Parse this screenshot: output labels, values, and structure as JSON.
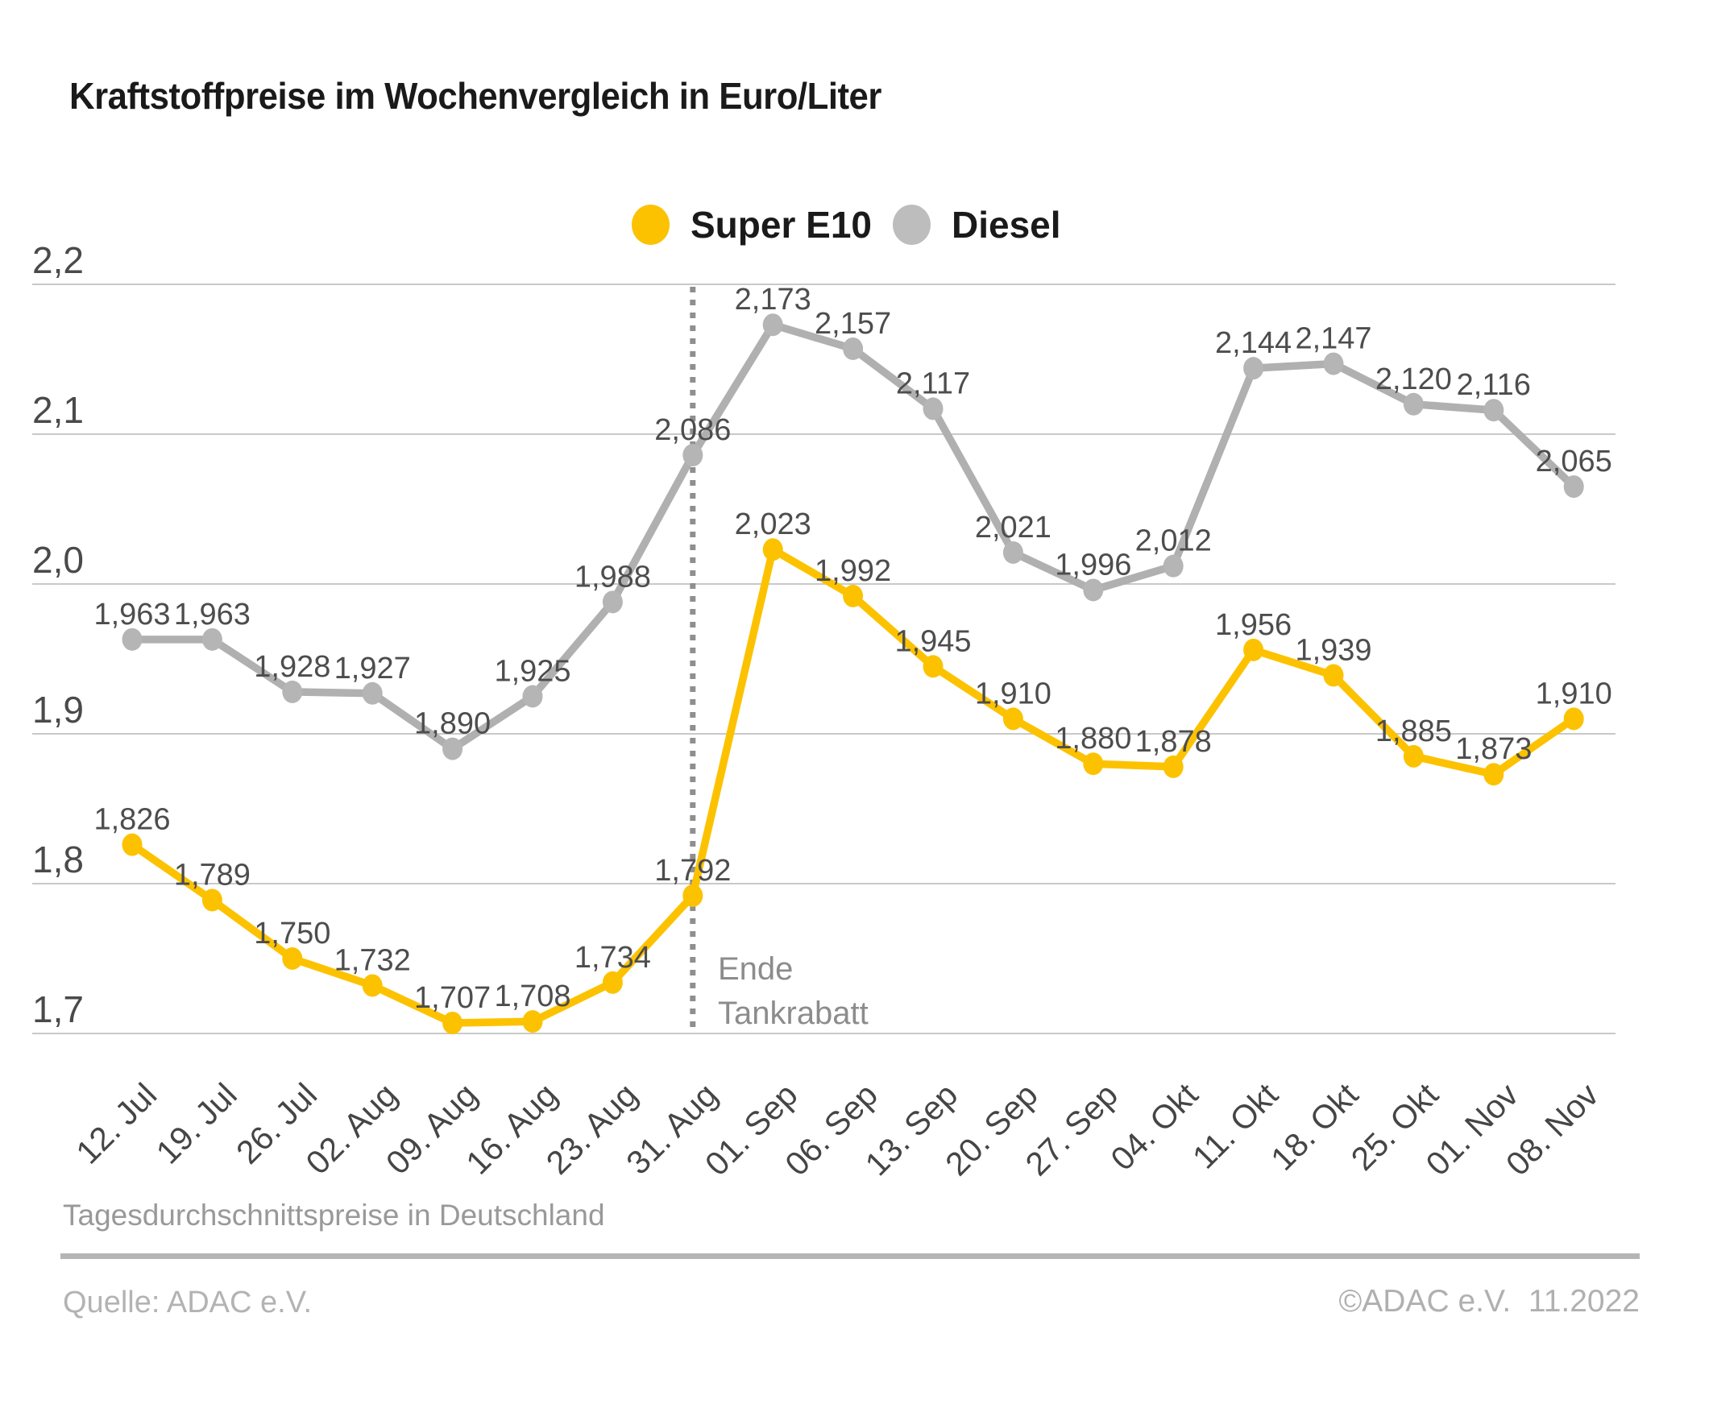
{
  "title": "Kraftstoffpreise im Wochenvergleich in Euro/Liter",
  "legend": [
    {
      "label": "Super E10",
      "color": "#FCC200"
    },
    {
      "label": "Diesel",
      "color": "#BDBDBD"
    }
  ],
  "footer": {
    "note": "Tagesdurchschnittspreise in Deutschland",
    "source": "Quelle: ADAC e.V.",
    "copyright": "©ADAC e.V.  11.2022"
  },
  "chart_data": {
    "type": "line",
    "title": "Kraftstoffpreise im Wochenvergleich in Euro/Liter",
    "categories": [
      "12. Jul",
      "19. Jul",
      "26. Jul",
      "02. Aug",
      "09. Aug",
      "16. Aug",
      "23. Aug",
      "31. Aug",
      "01. Sep",
      "06. Sep",
      "13. Sep",
      "20. Sep",
      "27. Sep",
      "04. Okt",
      "11. Okt",
      "18. Okt",
      "25. Okt",
      "01. Nov",
      "08. Nov"
    ],
    "series": [
      {
        "name": "Super E10",
        "color": "#FCC200",
        "values": [
          1.826,
          1.789,
          1.75,
          1.732,
          1.707,
          1.708,
          1.734,
          1.792,
          2.023,
          1.992,
          1.945,
          1.91,
          1.88,
          1.878,
          1.956,
          1.939,
          1.885,
          1.873,
          1.91
        ]
      },
      {
        "name": "Diesel",
        "color": "#B0B0B0",
        "dot_color": "#B5B5B5",
        "values": [
          1.963,
          1.963,
          1.928,
          1.927,
          1.89,
          1.925,
          1.988,
          2.086,
          2.173,
          2.157,
          2.117,
          2.021,
          1.996,
          2.012,
          2.144,
          2.147,
          2.12,
          2.116,
          2.065
        ]
      }
    ],
    "ylim": [
      1.7,
      2.2
    ],
    "ytick_values": [
      2.2,
      2.1,
      2.0,
      1.9,
      1.8,
      1.7
    ],
    "ytick_labels": [
      "2,2",
      "2,1",
      "2,0",
      "1,9",
      "1,8",
      "1,7"
    ],
    "grid": true,
    "legend_position": "top-center",
    "decimal_separator": ",",
    "vline": {
      "at_category": "31. Aug",
      "at_index": 7,
      "label": [
        "Ende",
        "Tankrabatt"
      ]
    }
  }
}
